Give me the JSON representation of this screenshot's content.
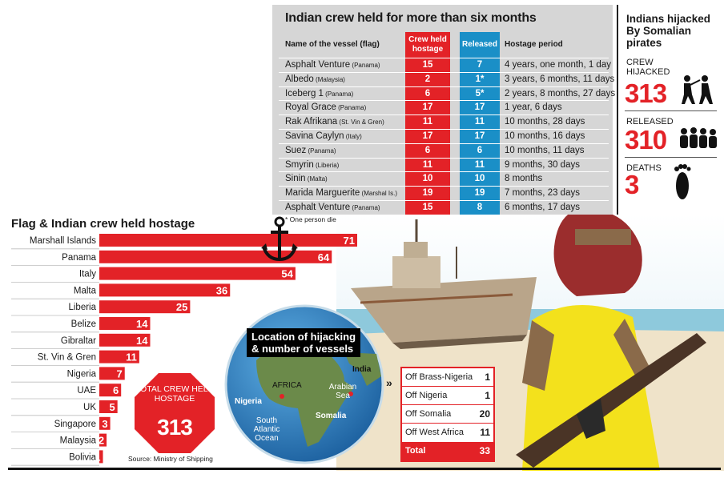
{
  "table": {
    "title": "Indian crew held for more than six months",
    "col_name": "Name of the vessel (flag)",
    "col_crew": "Crew held hostage",
    "col_released": "Released",
    "col_period": "Hostage period",
    "rows": [
      {
        "vessel": "Asphalt Venture",
        "flag": "(Panama)",
        "crew": "15",
        "released": "7",
        "period": "4 years, one month, 1 day"
      },
      {
        "vessel": "Albedo",
        "flag": "(Malaysia)",
        "crew": "2",
        "released": "1*",
        "period": "3 years, 6 months, 11 days"
      },
      {
        "vessel": "Iceberg 1",
        "flag": "(Panama)",
        "crew": "6",
        "released": "5*",
        "period": "2 years, 8 months, 27 days"
      },
      {
        "vessel": "Royal Grace",
        "flag": "(Panama)",
        "crew": "17",
        "released": "17",
        "period": "1 year, 6 days"
      },
      {
        "vessel": "Rak Afrikana",
        "flag": "(St. Vin & Gren)",
        "crew": "11",
        "released": "11",
        "period": "10 months, 28 days"
      },
      {
        "vessel": "Savina Caylyn",
        "flag": "(Italy)",
        "crew": "17",
        "released": "17",
        "period": "10 months, 16 days"
      },
      {
        "vessel": "Suez",
        "flag": "(Panama)",
        "crew": "6",
        "released": "6",
        "period": "10 months, 11 days"
      },
      {
        "vessel": "Smyrin",
        "flag": "(Liberia)",
        "crew": "11",
        "released": "11",
        "period": "9 months, 30 days"
      },
      {
        "vessel": "Sinin",
        "flag": "(Malta)",
        "crew": "10",
        "released": "10",
        "period": "8 months"
      },
      {
        "vessel": "Marida Marguerite",
        "flag": "(Marshal Is.)",
        "crew": "19",
        "released": "19",
        "period": "7 months, 23 days"
      },
      {
        "vessel": "Asphalt Venture",
        "flag": "(Panama)",
        "crew": "15",
        "released": "8",
        "period": "6 months, 17 days"
      }
    ],
    "footnote": "* One person died"
  },
  "pirates_panel": {
    "title": "Indians hijacked By Somalian pirates",
    "crew_hijacked_label": "CREW HIJACKED",
    "crew_hijacked_value": "313",
    "released_label": "RELEASED",
    "released_value": "310",
    "deaths_label": "DEATHS",
    "deaths_value": "3"
  },
  "chart_data": {
    "type": "bar",
    "title": "Flag & Indian crew held hostage",
    "orientation": "horizontal",
    "categories": [
      "Marshall Islands",
      "Panama",
      "Italy",
      "Malta",
      "Liberia",
      "Belize",
      "Gibraltar",
      "St. Vin & Gren",
      "Nigeria",
      "UAE",
      "UK",
      "Singapore",
      "Malaysia",
      "Bolivia"
    ],
    "values": [
      71,
      64,
      54,
      36,
      25,
      14,
      14,
      11,
      7,
      6,
      5,
      3,
      2,
      1
    ],
    "bar_color": "#e32227"
  },
  "total_badge": {
    "label": "TOTAL CREW HELD HOSTAGE",
    "value": "313"
  },
  "source": "Source: Ministry of Shipping",
  "map": {
    "title": "Location of hijacking & number of vessels",
    "labels": {
      "africa": "AFRICA",
      "india": "India",
      "nigeria": "Nigeria",
      "arabian_sea": "Arabian Sea",
      "somalia": "Somalia",
      "atlantic": "South Atlantic Ocean"
    },
    "locations": [
      {
        "name": "Off Brass-Nigeria",
        "count": "1"
      },
      {
        "name": "Off Nigeria",
        "count": "1"
      },
      {
        "name": "Off Somalia",
        "count": "20"
      },
      {
        "name": "Off West Africa",
        "count": "11"
      }
    ],
    "total_label": "Total",
    "total_value": "33"
  },
  "colors": {
    "red": "#e32227",
    "blue": "#1a8fc7",
    "panel_gray": "#d6d6d6",
    "ocean": "#2a7fc0",
    "land": "#6b8a4a"
  }
}
